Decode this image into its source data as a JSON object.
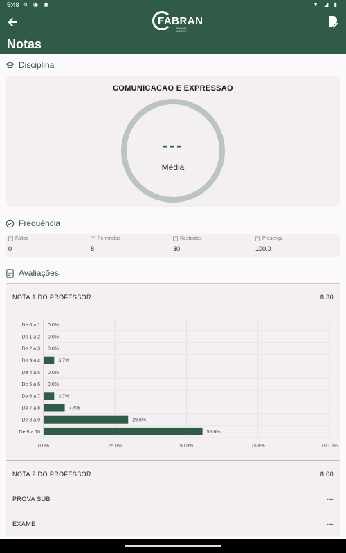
{
  "status_bar": {
    "time": "5:48"
  },
  "header": {
    "brand": "FABRAN",
    "brand_sub": "BRASIL NORTE",
    "title": "Notas"
  },
  "disciplina": {
    "section_label": "Disciplina",
    "name": "COMUNICACAO E EXPRESSAO",
    "media_value": "---",
    "media_label": "Média"
  },
  "frequencia": {
    "section_label": "Frequência",
    "items": [
      {
        "label": "Faltas",
        "value": "0"
      },
      {
        "label": "Permitidas",
        "value": "8"
      },
      {
        "label": "Restantes",
        "value": "30"
      },
      {
        "label": "Presença",
        "value": "100.0"
      }
    ]
  },
  "avaliacoes": {
    "section_label": "Avaliações",
    "items": [
      {
        "label": "NOTA 1 DO PROFESSOR",
        "value": "8.30"
      },
      {
        "label": "NOTA 2 DO PROFESSOR",
        "value": "8.00"
      },
      {
        "label": "PROVA SUB",
        "value": "---"
      },
      {
        "label": "EXAME",
        "value": "---"
      }
    ]
  },
  "chart_data": {
    "type": "bar",
    "orientation": "horizontal",
    "categories": [
      "De 0 a 1",
      "De 1 a 2",
      "De 2 a 3",
      "De 3 a 4",
      "De 4 a 5",
      "De 5 a 6",
      "De 6 a 7",
      "De 7 a 8",
      "De 8 a 9",
      "De 9 a 10"
    ],
    "values": [
      0.0,
      0.0,
      0.0,
      3.7,
      0.0,
      0.0,
      3.7,
      7.4,
      29.6,
      55.6
    ],
    "value_labels": [
      "0.0%",
      "0.0%",
      "0.0%",
      "3.7%",
      "0.0%",
      "0.0%",
      "3.7%",
      "7.4%",
      "29.6%",
      "55.6%"
    ],
    "xticks": [
      "0.0%",
      "25.0%",
      "50.0%",
      "75.0%",
      "100.0%"
    ],
    "xlim": [
      0,
      100
    ],
    "grid": true,
    "bar_color": "#305b47"
  },
  "colors": {
    "primary": "#305b47",
    "ring": "#bbc4c0"
  }
}
